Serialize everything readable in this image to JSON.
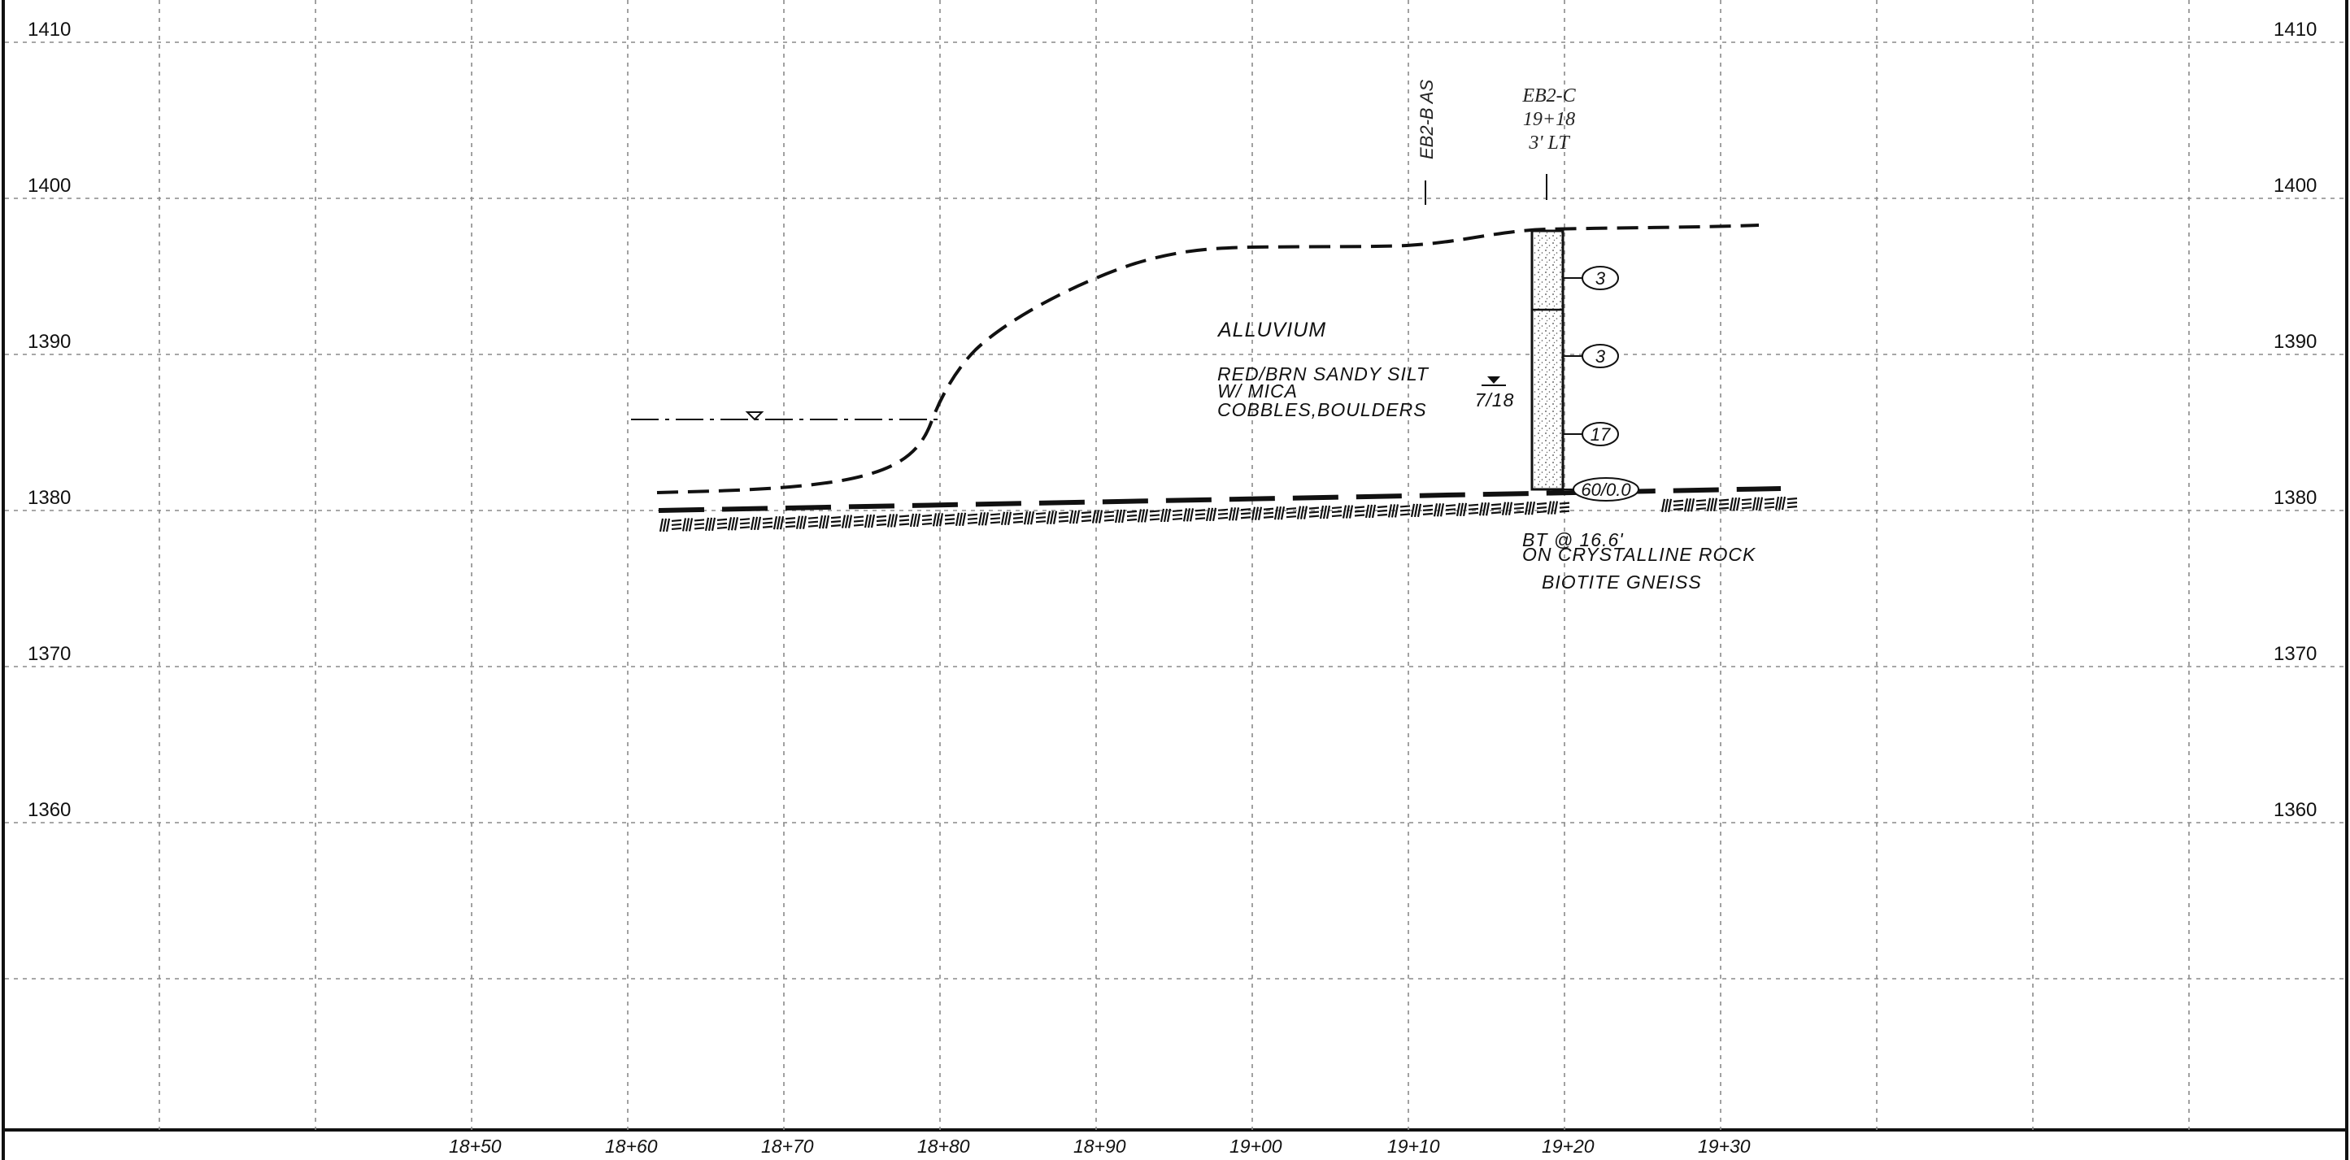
{
  "elevation_labels": [
    "1410",
    "1400",
    "1390",
    "1380",
    "1370",
    "1360"
  ],
  "station_labels": [
    "18+50",
    "18+60",
    "18+70",
    "18+80",
    "18+90",
    "19+00",
    "19+10",
    "19+20",
    "19+30"
  ],
  "stratum": {
    "name": "ALLUVIUM",
    "description": [
      "RED/BRN SANDY SILT",
      "W/ MICA",
      "COBBLES,BOULDERS"
    ]
  },
  "boring_b": {
    "label": "EB2-B AS"
  },
  "boring_c": {
    "label": [
      "EB2-C",
      "19+18",
      "3' LT"
    ]
  },
  "water": {
    "label": "7/18"
  },
  "blow_counts": [
    "3",
    "3",
    "17",
    "60/0.0"
  ],
  "rock": {
    "lines": [
      "BT @ 16.6'",
      "ON CRYSTALLINE ROCK",
      "BIOTITE GNEISS"
    ]
  },
  "colors": {
    "line": "#111111",
    "grid": "#8a8a8a"
  }
}
